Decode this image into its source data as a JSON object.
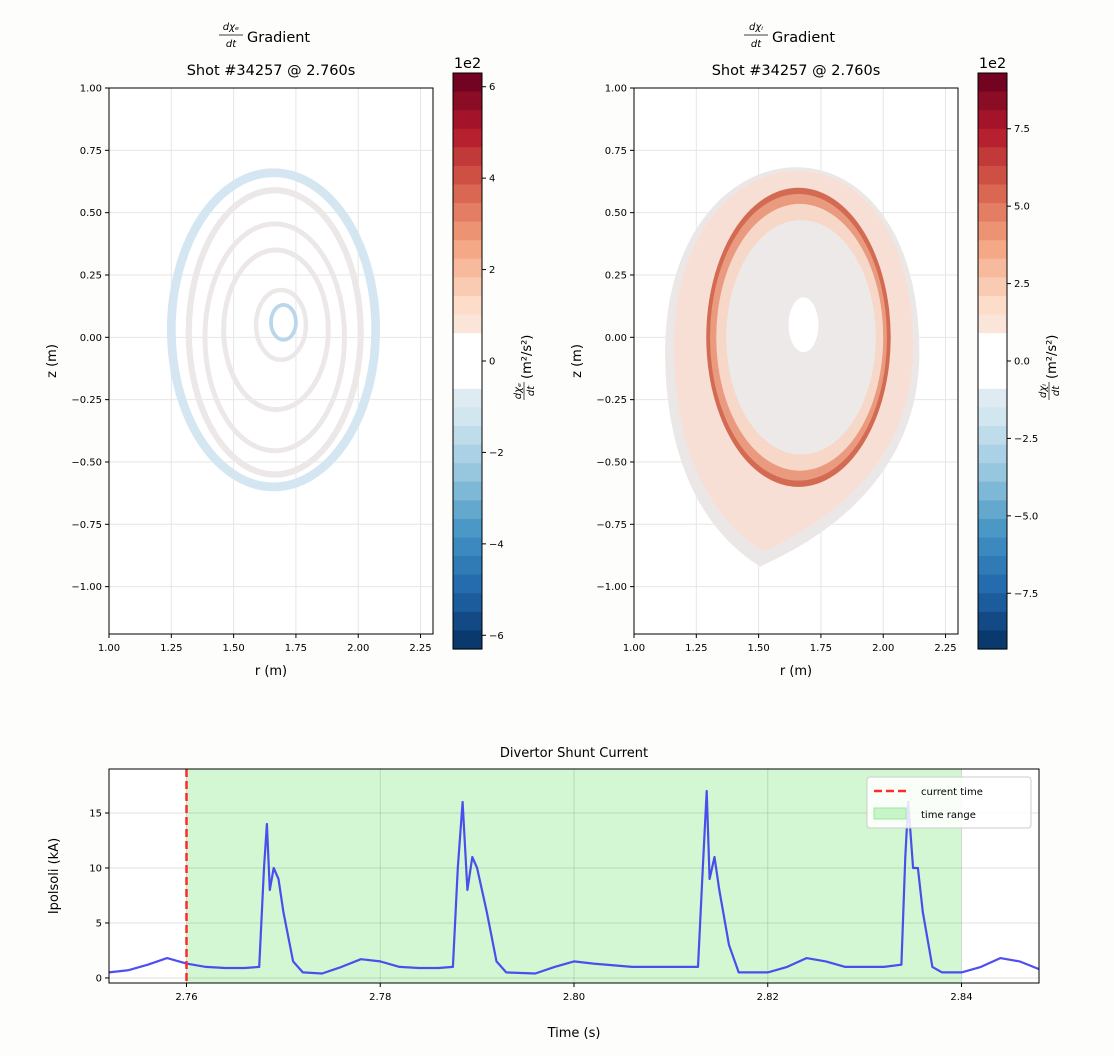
{
  "chart_data": [
    {
      "type": "heatmap",
      "title_num": "dχₑ",
      "title_den": "dt",
      "title_word": "Gradient",
      "title_line2": "Shot #34257 @ 2.760s",
      "xlabel": "r (m)",
      "ylabel": "z (m)",
      "xlim": [
        1.0,
        2.3
      ],
      "ylim": [
        -1.19,
        1.0
      ],
      "xticks": [
        "1.00",
        "1.25",
        "1.50",
        "1.75",
        "2.00",
        "2.25"
      ],
      "yticks": [
        "1.00",
        "0.75",
        "0.50",
        "0.25",
        "0.00",
        "−0.25",
        "−0.50",
        "−0.75",
        "−1.00"
      ],
      "grid": true,
      "colorbar": {
        "colormap": "RdBu_r",
        "offset_text": "1e2",
        "range": [
          -6.3,
          6.3
        ],
        "ticks": [
          "6",
          "4",
          "2",
          "0",
          "−2",
          "−4",
          "−6"
        ],
        "tick_values": [
          6,
          4,
          2,
          0,
          -2,
          -4,
          -6
        ],
        "label_num": "dχₑ",
        "label_den": "dt",
        "label_units": "(m²/s²)"
      },
      "contour_bands": [
        {
          "r0": 1.66,
          "z0": 0.03,
          "ar": 0.41,
          "az": 0.63,
          "width": 0.035,
          "color": "#d4e6f1"
        },
        {
          "r0": 1.665,
          "z0": 0.02,
          "ar": 0.345,
          "az": 0.57,
          "width": 0.025,
          "color": "#ede8e8"
        },
        {
          "r0": 1.665,
          "z0": 0.0,
          "ar": 0.28,
          "az": 0.455,
          "width": 0.02,
          "color": "#ede8e8"
        },
        {
          "r0": 1.67,
          "z0": 0.03,
          "ar": 0.21,
          "az": 0.32,
          "width": 0.02,
          "color": "#ede8e8"
        },
        {
          "r0": 1.69,
          "z0": 0.05,
          "ar": 0.1,
          "az": 0.14,
          "width": 0.018,
          "color": "#ede8e8"
        },
        {
          "r0": 1.7,
          "z0": 0.06,
          "ar": 0.05,
          "az": 0.07,
          "width": 0.015,
          "color": "#b9d6ea"
        }
      ]
    },
    {
      "type": "heatmap",
      "title_num": "dχᵢ",
      "title_den": "dt",
      "title_word": "Gradient",
      "title_line2": "Shot #34257 @ 2.760s",
      "xlabel": "r (m)",
      "ylabel": "z (m)",
      "xlim": [
        1.0,
        2.3
      ],
      "ylim": [
        -1.19,
        1.0
      ],
      "xticks": [
        "1.00",
        "1.25",
        "1.50",
        "1.75",
        "2.00",
        "2.25"
      ],
      "yticks": [
        "1.00",
        "0.75",
        "0.50",
        "0.25",
        "0.00",
        "−0.25",
        "−0.50",
        "−0.75",
        "−1.00"
      ],
      "grid": true,
      "colorbar": {
        "colormap": "RdBu_r",
        "offset_text": "1e2",
        "range": [
          -9.3,
          9.3
        ],
        "ticks": [
          "7.5",
          "5.0",
          "2.5",
          "0.0",
          "−2.5",
          "−5.0",
          "−7.5"
        ],
        "tick_values": [
          7.5,
          5,
          2.5,
          0,
          -2.5,
          -5,
          -7.5
        ],
        "label_num": "dχᵢ",
        "label_den": "dt",
        "label_units": "(m²/s²)"
      },
      "filled_regions": [
        {
          "r0": 1.635,
          "z0": -0.06,
          "ar": 0.51,
          "az": 0.86,
          "color": "#ece7e7"
        },
        {
          "r0": 1.64,
          "z0": -0.04,
          "ar": 0.48,
          "az": 0.82,
          "color": "#f7dfd6"
        },
        {
          "r0": 1.66,
          "z0": 0.0,
          "ar": 0.37,
          "az": 0.6,
          "color": "#d36a52"
        },
        {
          "r0": 1.66,
          "z0": 0.0,
          "ar": 0.355,
          "az": 0.575,
          "color": "#e99a7f"
        },
        {
          "r0": 1.665,
          "z0": 0.0,
          "ar": 0.335,
          "az": 0.535,
          "color": "#f7d7c8"
        },
        {
          "r0": 1.67,
          "z0": 0.0,
          "ar": 0.3,
          "az": 0.47,
          "color": "#ede9e8"
        },
        {
          "r0": 1.68,
          "z0": 0.05,
          "ar": 0.06,
          "az": 0.11,
          "color": "#ffffff"
        }
      ]
    },
    {
      "type": "line",
      "title": "Divertor Shunt Current",
      "xlabel": "Time (s)",
      "ylabel": "Ipolsoli (kA)",
      "xlim": [
        2.752,
        2.848
      ],
      "ylim": [
        -0.46,
        19.0
      ],
      "xticks": [
        "2.76",
        "2.78",
        "2.80",
        "2.82",
        "2.84"
      ],
      "xtick_values": [
        2.76,
        2.78,
        2.8,
        2.82,
        2.84
      ],
      "yticks": [
        "0",
        "5",
        "10",
        "15"
      ],
      "ytick_values": [
        0,
        5,
        10,
        15
      ],
      "grid": true,
      "legend_position": "top-right",
      "legend": [
        "current time",
        "time range"
      ],
      "current_time": 2.76,
      "time_range": [
        2.76,
        2.84
      ],
      "colors": {
        "signal": "#3b3bf0",
        "current_time": "#ff2a2a",
        "time_range": "#c8f5c8"
      },
      "series": [
        {
          "x": [
            2.752,
            2.754,
            2.756,
            2.758,
            2.76,
            2.762,
            2.764,
            2.766,
            2.7675,
            2.768,
            2.7683,
            2.7686,
            2.769,
            2.7695,
            2.77,
            2.771,
            2.772,
            2.774,
            2.776,
            2.778,
            2.78,
            2.782,
            2.784,
            2.786,
            2.7875,
            2.788,
            2.7885,
            2.789,
            2.7895,
            2.79,
            2.791,
            2.792,
            2.793,
            2.796,
            2.798,
            2.8,
            2.802,
            2.806,
            2.81,
            2.8128,
            2.8133,
            2.8137,
            2.814,
            2.8145,
            2.815,
            2.816,
            2.817,
            2.82,
            2.822,
            2.824,
            2.826,
            2.828,
            2.832,
            2.8338,
            2.8342,
            2.8345,
            2.835,
            2.8355,
            2.836,
            2.837,
            2.838,
            2.84,
            2.842,
            2.844,
            2.846,
            2.848
          ],
          "y": [
            0.5,
            0.7,
            1.2,
            1.8,
            1.3,
            1.0,
            0.9,
            0.9,
            1.0,
            10,
            14,
            8,
            10,
            9,
            6,
            1.5,
            0.5,
            0.4,
            1.0,
            1.7,
            1.5,
            1.0,
            0.9,
            0.9,
            1.0,
            10,
            16,
            8,
            11,
            10,
            6,
            1.5,
            0.5,
            0.4,
            1.0,
            1.5,
            1.3,
            1.0,
            1.0,
            1.0,
            10,
            17,
            9,
            11,
            8,
            3,
            0.5,
            0.5,
            1.0,
            1.8,
            1.5,
            1.0,
            1.0,
            1.2,
            11,
            16,
            10,
            10,
            6,
            1.0,
            0.5,
            0.5,
            1.0,
            1.8,
            1.5,
            0.8
          ]
        }
      ]
    }
  ]
}
